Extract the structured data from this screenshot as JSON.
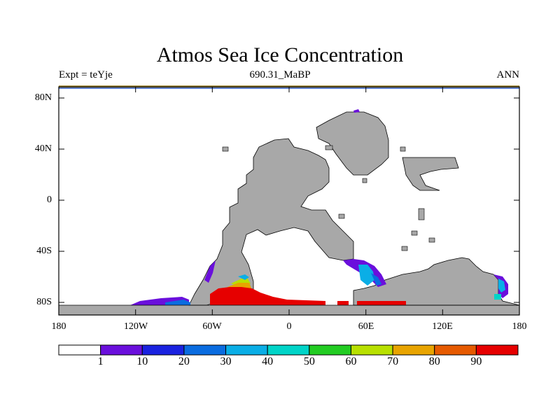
{
  "title": "Atmos Sea Ice Concentration",
  "left_label": "Expt = teYje",
  "center_label": "690.31_MaBP",
  "right_label": "ANN",
  "y_ticks": [
    "80N",
    "40N",
    "0",
    "40S",
    "80S"
  ],
  "x_ticks": [
    "180",
    "120W",
    "60W",
    "0",
    "60E",
    "120E",
    "180"
  ],
  "colorbar": {
    "labels": [
      "1",
      "10",
      "20",
      "30",
      "40",
      "50",
      "60",
      "70",
      "80",
      "90"
    ],
    "colors": [
      "#ffffff",
      "#6a0fdc",
      "#1a22e0",
      "#0a6ce0",
      "#0aaee6",
      "#00d4c8",
      "#22cc22",
      "#b8e000",
      "#e8a400",
      "#e65a00",
      "#e60000"
    ]
  },
  "colors": {
    "land": "#a8a8a8",
    "ice_high": "#e60000",
    "ice_purple": "#6a0fdc",
    "ice_blue": "#0a6ce0",
    "ice_cyan": "#0aaee6",
    "ice_orange": "#e8a400",
    "ice_yellow": "#b8e000",
    "ice_teal": "#00d4c8"
  }
}
